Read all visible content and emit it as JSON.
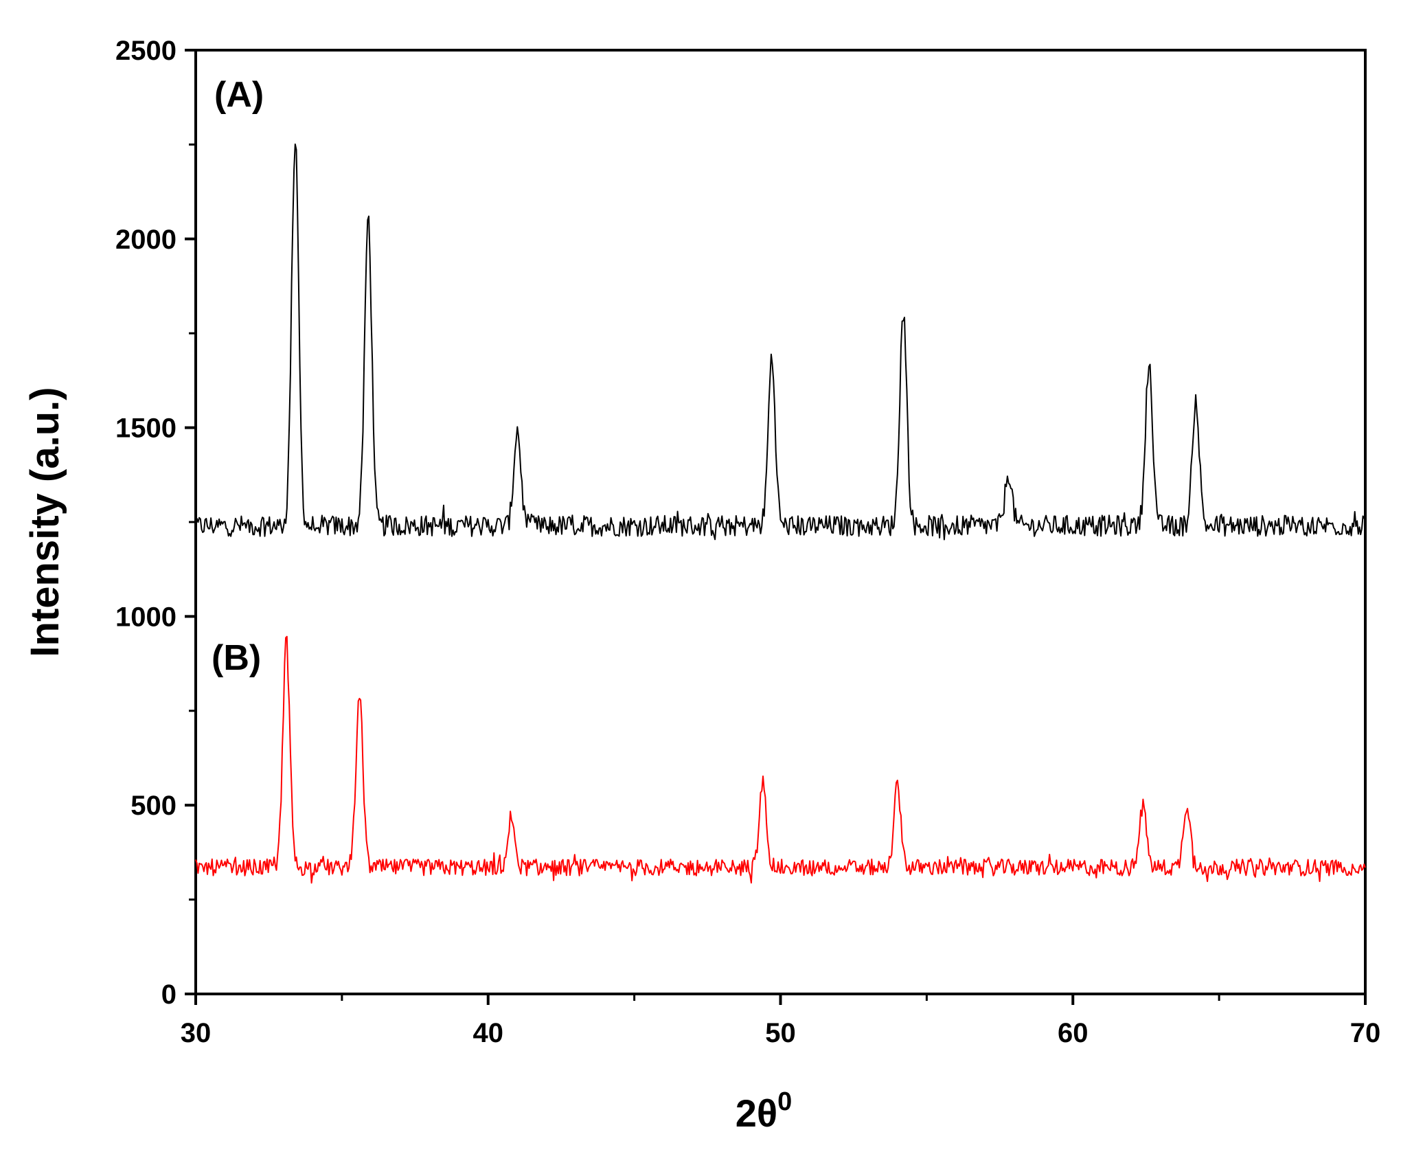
{
  "chart_data": {
    "type": "line",
    "xlabel": "2θ",
    "xlabel_superscript": "0",
    "ylabel": "Intensity (a.u.)",
    "xlim": [
      30,
      70
    ],
    "ylim": [
      0,
      2500
    ],
    "x_major_ticks": [
      30,
      40,
      50,
      60,
      70
    ],
    "x_minor_ticks": [
      35,
      45,
      55,
      65
    ],
    "y_major_ticks": [
      0,
      500,
      1000,
      1500,
      2000,
      2500
    ],
    "y_minor_ticks": [
      250,
      750,
      1250,
      1750,
      2250
    ],
    "grid": false,
    "legend": "none",
    "annotations": [
      "(A)",
      "(B)"
    ],
    "series": [
      {
        "label": "(A)",
        "color": "#000000",
        "baseline": 1240,
        "noise": 28,
        "peaks": [
          {
            "x": 33.4,
            "y": 2265
          },
          {
            "x": 35.9,
            "y": 2060
          },
          {
            "x": 41.0,
            "y": 1495
          },
          {
            "x": 49.7,
            "y": 1685
          },
          {
            "x": 54.2,
            "y": 1810
          },
          {
            "x": 57.8,
            "y": 1380
          },
          {
            "x": 62.6,
            "y": 1670
          },
          {
            "x": 64.2,
            "y": 1575
          }
        ]
      },
      {
        "label": "(B)",
        "color": "#ff0000",
        "baseline": 335,
        "noise": 22,
        "peaks": [
          {
            "x": 33.1,
            "y": 935
          },
          {
            "x": 35.6,
            "y": 790
          },
          {
            "x": 40.8,
            "y": 465
          },
          {
            "x": 49.4,
            "y": 560
          },
          {
            "x": 54.0,
            "y": 550
          },
          {
            "x": 62.4,
            "y": 500
          },
          {
            "x": 63.9,
            "y": 505
          }
        ]
      }
    ]
  }
}
